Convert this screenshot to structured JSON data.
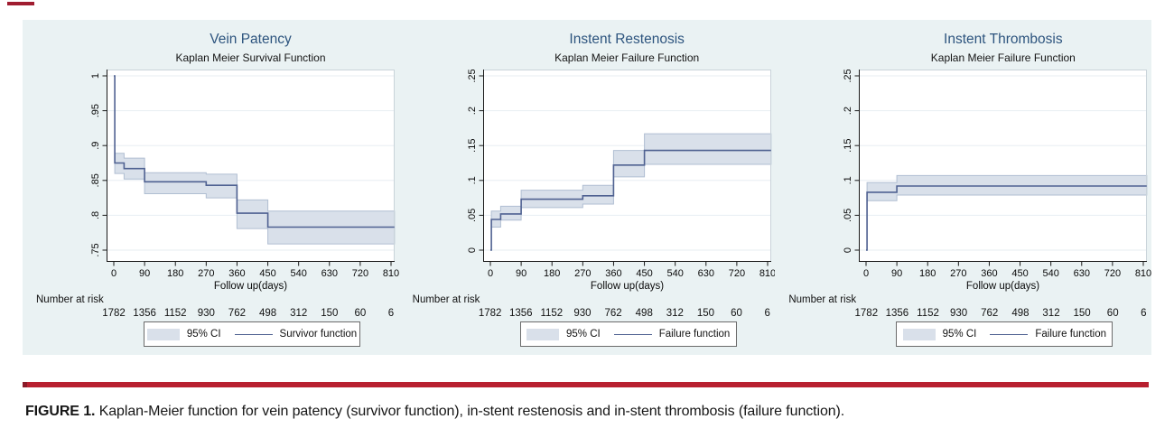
{
  "colors": {
    "panel_bg": "#eaf2f3",
    "plot_bg": "#ffffff",
    "ci_fill": "#d9e0ea",
    "ci_edge": "#b0bed2",
    "line": "#4f6191",
    "title": "#2d547e",
    "grid": "#e7eef2",
    "frame": "#c9d3da",
    "axis": "#1a1a1a",
    "accent_red": "#b82030",
    "accent_red_dark": "#8a1a28",
    "top_mark": "#a01c30"
  },
  "caption": {
    "prefix": "FIGURE 1.",
    "text": " Kaplan-Meier function for vein patency (survivor function), in-stent restenosis and in-stent thrombosis (failure function)."
  },
  "chart_data": [
    {
      "type": "line",
      "title": "Vein Patency",
      "subtitle": "Kaplan Meier Survival Function",
      "xlabel": "Follow up(days)",
      "x_ticks": [
        0,
        90,
        180,
        270,
        360,
        450,
        540,
        630,
        720,
        810
      ],
      "x_range": [
        0,
        820
      ],
      "y_tick_values": [
        0.75,
        0.8,
        0.85,
        0.9,
        0.95,
        1
      ],
      "y_tick_labels": [
        ".75",
        ".8",
        ".85",
        ".9",
        ".95",
        "1"
      ],
      "grid": true,
      "series": [
        {
          "name": "Survivor function",
          "points": [
            [
              0,
              1
            ],
            [
              3,
              1
            ],
            [
              3,
              0.875
            ],
            [
              30,
              0.875
            ],
            [
              30,
              0.867
            ],
            [
              90,
              0.867
            ],
            [
              90,
              0.848
            ],
            [
              270,
              0.848
            ],
            [
              270,
              0.843
            ],
            [
              360,
              0.843
            ],
            [
              360,
              0.803
            ],
            [
              450,
              0.803
            ],
            [
              450,
              0.783
            ],
            [
              820,
              0.783
            ]
          ]
        }
      ],
      "ci_95": {
        "label": "95% CI",
        "steps": [
          [
            3,
            30,
            0.86,
            0.889
          ],
          [
            30,
            90,
            0.852,
            0.882
          ],
          [
            90,
            270,
            0.831,
            0.861
          ],
          [
            270,
            360,
            0.825,
            0.859
          ],
          [
            360,
            450,
            0.781,
            0.822
          ],
          [
            450,
            820,
            0.759,
            0.806
          ]
        ]
      },
      "number_at_risk": {
        "label": "Number at risk",
        "values": [
          "1782",
          "1356",
          "1152",
          "930",
          "762",
          "498",
          "312",
          "150",
          "60",
          "6"
        ]
      },
      "legend": {
        "ci_label": "95% CI",
        "line_label": "Survivor function",
        "position": "bottom-center"
      }
    },
    {
      "type": "line",
      "title": "Instent Restenosis",
      "subtitle": "Kaplan Meier Failure Function",
      "xlabel": "Follow up(days)",
      "x_ticks": [
        0,
        90,
        180,
        270,
        360,
        450,
        540,
        630,
        720,
        810
      ],
      "x_range": [
        0,
        820
      ],
      "y_tick_values": [
        0,
        0.05,
        0.1,
        0.15,
        0.2,
        0.25
      ],
      "y_tick_labels": [
        "0",
        ".05",
        ".1",
        ".15",
        ".2",
        ".25"
      ],
      "grid": true,
      "series": [
        {
          "name": "Failure function",
          "points": [
            [
              0,
              0
            ],
            [
              3,
              0
            ],
            [
              3,
              0.044
            ],
            [
              30,
              0.044
            ],
            [
              30,
              0.052
            ],
            [
              90,
              0.052
            ],
            [
              90,
              0.073
            ],
            [
              270,
              0.073
            ],
            [
              270,
              0.078
            ],
            [
              360,
              0.078
            ],
            [
              360,
              0.122
            ],
            [
              450,
              0.122
            ],
            [
              450,
              0.143
            ],
            [
              820,
              0.143
            ]
          ]
        }
      ],
      "ci_95": {
        "label": "95% CI",
        "steps": [
          [
            3,
            30,
            0.033,
            0.056
          ],
          [
            30,
            90,
            0.043,
            0.063
          ],
          [
            90,
            270,
            0.061,
            0.086
          ],
          [
            270,
            360,
            0.066,
            0.093
          ],
          [
            360,
            450,
            0.105,
            0.143
          ],
          [
            450,
            820,
            0.123,
            0.167
          ]
        ]
      },
      "number_at_risk": {
        "label": "Number at risk",
        "values": [
          "1782",
          "1356",
          "1152",
          "930",
          "762",
          "498",
          "312",
          "150",
          "60",
          "6"
        ]
      },
      "legend": {
        "ci_label": "95% CI",
        "line_label": "Failure function",
        "position": "bottom-center"
      }
    },
    {
      "type": "line",
      "title": "Instent Thrombosis",
      "subtitle": "Kaplan Meier Failure Function",
      "xlabel": "Follow up(days)",
      "x_ticks": [
        0,
        90,
        180,
        270,
        360,
        450,
        540,
        630,
        720,
        810
      ],
      "x_range": [
        0,
        820
      ],
      "y_tick_values": [
        0,
        0.05,
        0.1,
        0.15,
        0.2,
        0.25
      ],
      "y_tick_labels": [
        "0",
        ".05",
        ".1",
        ".15",
        ".2",
        ".25"
      ],
      "grid": true,
      "series": [
        {
          "name": "Failure function",
          "points": [
            [
              0,
              0
            ],
            [
              3,
              0
            ],
            [
              3,
              0.083
            ],
            [
              90,
              0.083
            ],
            [
              90,
              0.092
            ],
            [
              820,
              0.092
            ]
          ]
        }
      ],
      "ci_95": {
        "label": "95% CI",
        "steps": [
          [
            3,
            90,
            0.071,
            0.097
          ],
          [
            90,
            820,
            0.079,
            0.107
          ]
        ]
      },
      "number_at_risk": {
        "label": "Number at risk",
        "values": [
          "1782",
          "1356",
          "1152",
          "930",
          "762",
          "498",
          "312",
          "150",
          "60",
          "6"
        ]
      },
      "legend": {
        "ci_label": "95% CI",
        "line_label": "Failure function",
        "position": "bottom-center"
      }
    }
  ]
}
